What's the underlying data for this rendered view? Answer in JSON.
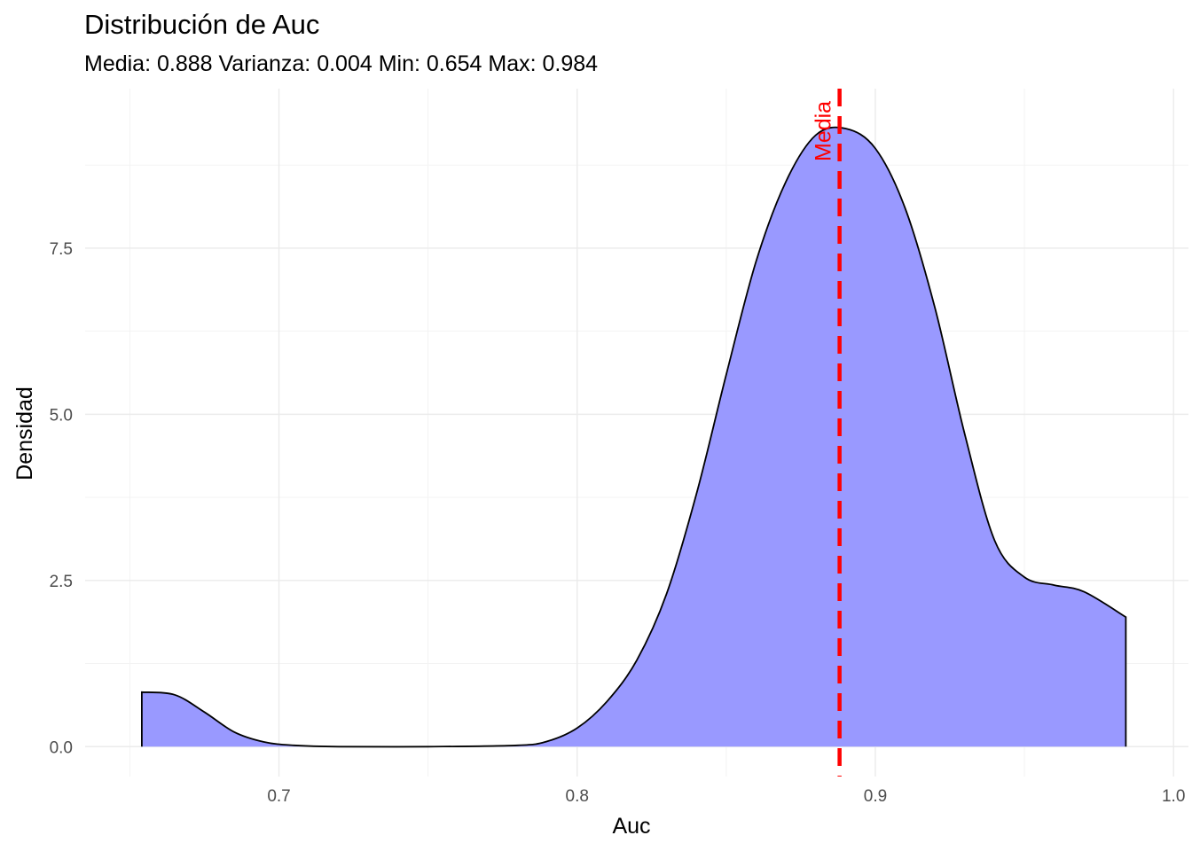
{
  "chart_data": {
    "type": "area",
    "title": "Distribución de Auc",
    "subtitle": "Media: 0.888 Varianza: 0.004 Min: 0.654 Max: 0.984",
    "xlabel": "Auc",
    "ylabel": "Densidad",
    "xlim": [
      0.635,
      1.005
    ],
    "ylim": [
      -0.45,
      9.9
    ],
    "x_ticks": [
      0.7,
      0.8,
      0.9,
      1.0
    ],
    "x_tick_labels": [
      "0.7",
      "0.8",
      "0.9",
      "1.0"
    ],
    "y_ticks": [
      0.0,
      2.5,
      5.0,
      7.5
    ],
    "y_tick_labels": [
      "0.0",
      "2.5",
      "5.0",
      "7.5"
    ],
    "grid": true,
    "fill_color": "#9999ff",
    "line_color": "#000000",
    "mean_line": {
      "x": 0.888,
      "label": "Media",
      "color": "#ff0000",
      "style": "dashed"
    },
    "x": [
      0.654,
      0.665,
      0.675,
      0.685,
      0.695,
      0.705,
      0.72,
      0.75,
      0.78,
      0.79,
      0.8,
      0.81,
      0.82,
      0.83,
      0.84,
      0.85,
      0.86,
      0.87,
      0.88,
      0.89,
      0.9,
      0.91,
      0.92,
      0.93,
      0.94,
      0.95,
      0.96,
      0.97,
      0.984
    ],
    "y": [
      0.82,
      0.78,
      0.52,
      0.22,
      0.07,
      0.02,
      0.0,
      0.0,
      0.02,
      0.08,
      0.28,
      0.68,
      1.3,
      2.3,
      3.8,
      5.6,
      7.3,
      8.5,
      9.2,
      9.3,
      9.0,
      8.1,
      6.6,
      4.7,
      3.1,
      2.55,
      2.43,
      2.33,
      1.95
    ]
  }
}
